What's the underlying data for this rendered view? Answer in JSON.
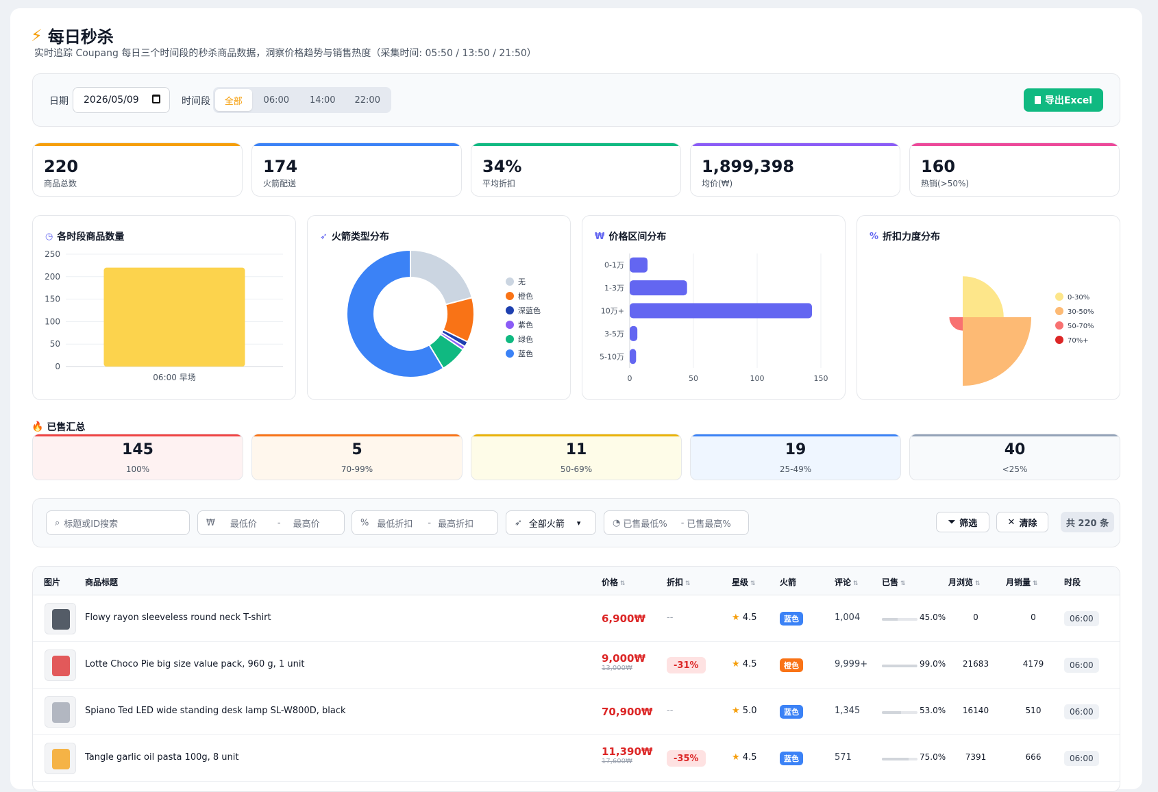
{
  "header": {
    "title": "每日秒杀",
    "subtitle": "实时追踪 Coupang 每日三个时间段的秒杀商品数据，洞察价格趋势与销售热度（采集时间: 05:50 / 13:50 / 21:50）"
  },
  "filters": {
    "date_label": "日期",
    "date_value": "2026/05/09",
    "slot_label": "时间段",
    "slots": [
      "全部",
      "06:00",
      "14:00",
      "22:00"
    ],
    "active_slot": "全部",
    "export_label": "导出Excel"
  },
  "stats": [
    {
      "value": "220",
      "caption": "商品总数",
      "color": "#f59e0b"
    },
    {
      "value": "174",
      "caption": "火箭配送",
      "color": "#3b82f6"
    },
    {
      "value": "34%",
      "caption": "平均折扣",
      "color": "#10b981"
    },
    {
      "value": "1,899,398",
      "caption": "均价(₩)",
      "color": "#8b5cf6"
    },
    {
      "value": "160",
      "caption": "热销(>50%)",
      "color": "#ec4899"
    }
  ],
  "charts": {
    "slot_count_title": "各时段商品数量",
    "rocket_title": "火箭类型分布",
    "price_title": "价格区间分布",
    "discount_title": "折扣力度分布"
  },
  "chart_data": [
    {
      "type": "bar",
      "title": "各时段商品数量",
      "categories": [
        "06:00 早场"
      ],
      "values": [
        220
      ],
      "ylim": [
        0,
        250
      ],
      "yticks": [
        0,
        50,
        100,
        150,
        200,
        250
      ],
      "color": "#fcd34d"
    },
    {
      "type": "pie",
      "title": "火箭类型分布",
      "labels": [
        "无",
        "橙色",
        "深蓝色",
        "紫色",
        "绿色",
        "蓝色"
      ],
      "values": [
        46,
        25,
        3,
        2,
        15,
        129
      ],
      "colors": [
        "#cbd5e1",
        "#f97316",
        "#1e40af",
        "#8b5cf6",
        "#10b981",
        "#3b82f6"
      ]
    },
    {
      "type": "bar",
      "orientation": "horizontal",
      "title": "价格区间分布",
      "categories": [
        "0-1万",
        "1-3万",
        "10万+",
        "3-5万",
        "5-10万"
      ],
      "values": [
        14,
        45,
        143,
        6,
        5
      ],
      "xlim": [
        0,
        150
      ],
      "xticks": [
        0,
        50,
        100,
        150
      ],
      "color": "#6366f1"
    },
    {
      "type": "pie",
      "subtype": "polar-area",
      "title": "折扣力度分布",
      "labels": [
        "0-30%",
        "30-50%",
        "50-70%",
        "70%+"
      ],
      "values": [
        55,
        92,
        18,
        0
      ],
      "colors": [
        "#fde68a",
        "#fdba74",
        "#f87171",
        "#dc2626"
      ]
    }
  ],
  "sold": {
    "title": "已售汇总",
    "buckets": [
      {
        "count": "145",
        "range": "100%",
        "bg": "#fef2f2",
        "top": "#ef4444"
      },
      {
        "count": "5",
        "range": "70-99%",
        "bg": "#fff7ed",
        "top": "#f97316"
      },
      {
        "count": "11",
        "range": "50-69%",
        "bg": "#fefce8",
        "top": "#eab308"
      },
      {
        "count": "19",
        "range": "25-49%",
        "bg": "#eff6ff",
        "top": "#3b82f6"
      },
      {
        "count": "40",
        "range": "<25%",
        "bg": "#f8fafc",
        "top": "#94a3b8"
      }
    ]
  },
  "search": {
    "keyword_placeholder": "标题或ID搜索",
    "min_price": "最低价",
    "max_price": "最高价",
    "min_disc": "最低折扣",
    "max_disc": "最高折扣",
    "rocket_select": "全部火箭",
    "sold_min": "已售最低%",
    "sold_max": "已售最高%",
    "filter_btn": "筛选",
    "clear_btn": "清除",
    "count": "共 220 条"
  },
  "table": {
    "headers": {
      "img": "图片",
      "title": "商品标题",
      "price": "价格",
      "disc": "折扣",
      "star": "星级",
      "rocket": "火箭",
      "review": "评论",
      "sold": "已售",
      "views": "月浏览",
      "sales": "月销量",
      "slot": "时段"
    },
    "rows": [
      {
        "title": "Flowy rayon sleeveless round neck T-shirt",
        "price": "6,900₩",
        "old": "",
        "disc": "--",
        "star": "4.5",
        "rocket": "蓝色",
        "rocket_color": "#3b82f6",
        "review": "1,004",
        "sold": "45.0%",
        "sold_pct": 45,
        "views": "0",
        "sales": "0",
        "slot": "06:00"
      },
      {
        "title": "Lotte Choco Pie big size value pack, 960 g, 1 unit",
        "price": "9,000₩",
        "old": "13,000₩",
        "disc": "-31%",
        "star": "4.5",
        "rocket": "橙色",
        "rocket_color": "#f97316",
        "review": "9,999+",
        "sold": "99.0%",
        "sold_pct": 99,
        "views": "21683",
        "sales": "4179",
        "slot": "06:00"
      },
      {
        "title": "Spiano Ted LED wide standing desk lamp SL-W800D, black",
        "price": "70,900₩",
        "old": "",
        "disc": "--",
        "star": "5.0",
        "rocket": "蓝色",
        "rocket_color": "#3b82f6",
        "review": "1,345",
        "sold": "53.0%",
        "sold_pct": 53,
        "views": "16140",
        "sales": "510",
        "slot": "06:00"
      },
      {
        "title": "Tangle garlic oil pasta 100g, 8 unit",
        "price": "11,390₩",
        "old": "17,600₩",
        "disc": "-35%",
        "star": "4.5",
        "rocket": "蓝色",
        "rocket_color": "#3b82f6",
        "review": "571",
        "sold": "75.0%",
        "sold_pct": 75,
        "views": "7391",
        "sales": "666",
        "slot": "06:00"
      }
    ]
  }
}
